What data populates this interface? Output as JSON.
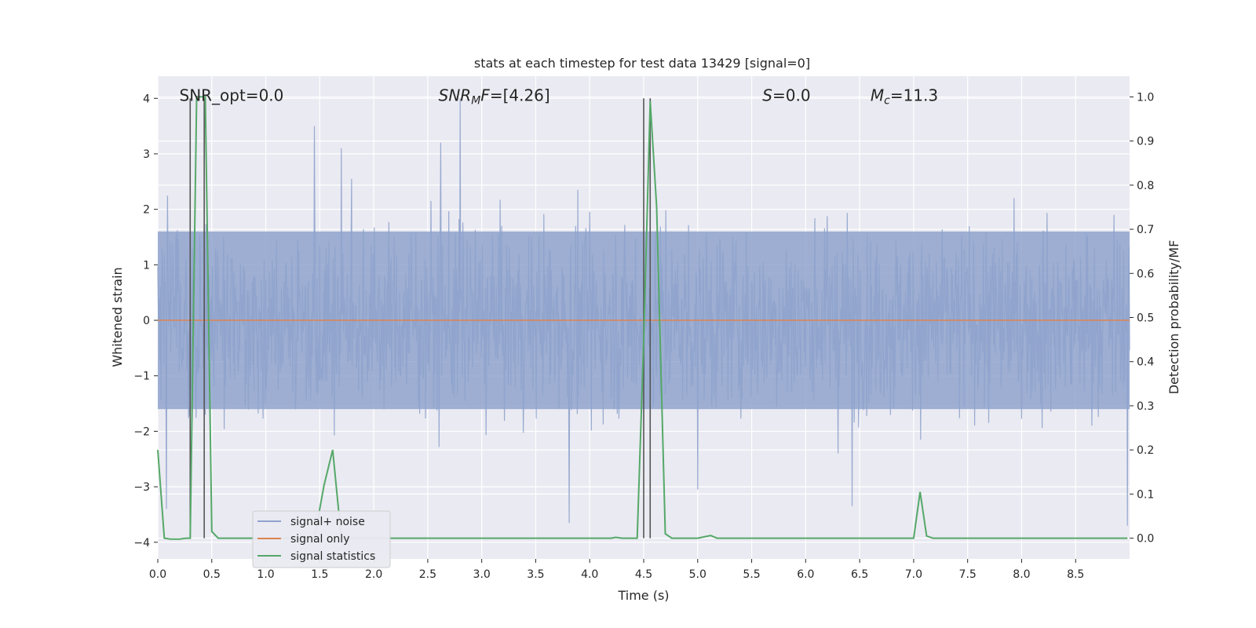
{
  "chart_data": {
    "type": "line",
    "title": "stats at each timestep for test data 13429 [signal=0]",
    "xlabel": "Time (s)",
    "ylabel": "Whitened strain",
    "ylabel_right": "Detection probability/MF",
    "xlim": [
      0.0,
      9.0
    ],
    "ylim": [
      -4.3,
      4.4
    ],
    "ylim_right": [
      -0.047,
      1.047
    ],
    "x_ticks": [
      0.0,
      0.5,
      1.0,
      1.5,
      2.0,
      2.5,
      3.0,
      3.5,
      4.0,
      4.5,
      5.0,
      5.5,
      6.0,
      6.5,
      7.0,
      7.5,
      8.0,
      8.5
    ],
    "x_tick_labels": [
      "0.0",
      "0.5",
      "1.0",
      "1.5",
      "2.0",
      "2.5",
      "3.0",
      "3.5",
      "4.0",
      "4.5",
      "5.0",
      "5.5",
      "6.0",
      "6.5",
      "7.0",
      "7.5",
      "8.0",
      "8.5"
    ],
    "y_ticks": [
      4,
      3,
      2,
      1,
      0,
      -1,
      -2,
      -3,
      -4
    ],
    "y_tick_labels": [
      "4",
      "3",
      "2",
      "1",
      "0",
      "−1",
      "−2",
      "−3",
      "−4"
    ],
    "y_right_ticks": [
      1.0,
      0.9,
      0.8,
      0.7,
      0.6,
      0.5,
      0.4,
      0.3,
      0.2,
      0.1,
      0.0
    ],
    "y_right_tick_labels": [
      "1.0",
      "0.9",
      "0.8",
      "0.7",
      "0.6",
      "0.5",
      "0.4",
      "0.3",
      "0.2",
      "0.1",
      "0.0"
    ],
    "grid": true,
    "legend_position": "lower-left",
    "annotations": [
      {
        "text": "SNR_opt=0.0",
        "x": 0.2,
        "y": 4.05
      },
      {
        "text": "SNRMF=[4.26]",
        "x": 2.6,
        "y": 4.05
      },
      {
        "text": "S=0.0",
        "x": 5.6,
        "y": 4.05
      },
      {
        "text": "Mc=11.3",
        "x": 6.6,
        "y": 4.05
      }
    ],
    "vertical_markers_x": [
      0.3,
      0.43,
      4.5,
      4.56
    ],
    "series": [
      {
        "name": "signal+ noise",
        "color": "#8fa3cc",
        "description": "whitened noise, approx. gaussian, amplitude mostly within +-2.5",
        "envelope_upper": 1.6,
        "envelope_lower": -1.6,
        "peaks": [
          {
            "x": 1.45,
            "y": 3.5
          },
          {
            "x": 2.8,
            "y": 4.0
          },
          {
            "x": 2.62,
            "y": 3.2
          },
          {
            "x": 1.7,
            "y": 3.1
          },
          {
            "x": 3.81,
            "y": -3.65
          },
          {
            "x": 6.43,
            "y": -3.35
          },
          {
            "x": 0.08,
            "y": -3.4
          },
          {
            "x": 5.0,
            "y": -3.05
          },
          {
            "x": 8.98,
            "y": -3.7
          }
        ]
      },
      {
        "name": "signal only",
        "color": "#dd8452",
        "x": [
          0.0,
          9.0
        ],
        "y": [
          0.0,
          0.0
        ]
      },
      {
        "name": "signal statistics",
        "color": "#55a868",
        "axis": "right",
        "x": [
          0.0,
          0.06,
          0.12,
          0.2,
          0.26,
          0.3,
          0.36,
          0.44,
          0.5,
          0.56,
          0.62,
          1.45,
          1.54,
          1.62,
          1.7,
          1.78,
          4.2,
          4.24,
          4.3,
          4.44,
          4.5,
          4.56,
          4.62,
          4.7,
          4.76,
          5.0,
          5.12,
          5.18,
          7.0,
          7.06,
          7.12,
          7.18,
          8.98
        ],
        "y": [
          0.2,
          0.0,
          -0.002,
          -0.002,
          0.0,
          0.0,
          1.0,
          1.0,
          0.015,
          0.0,
          0.0,
          0.0,
          0.12,
          0.2,
          0.0,
          0.0,
          0.0,
          0.002,
          0.0,
          0.0,
          0.45,
          0.99,
          0.75,
          0.01,
          0.0,
          0.0,
          0.006,
          0.0,
          0.0,
          0.105,
          0.005,
          0.0,
          0.0
        ]
      }
    ]
  }
}
